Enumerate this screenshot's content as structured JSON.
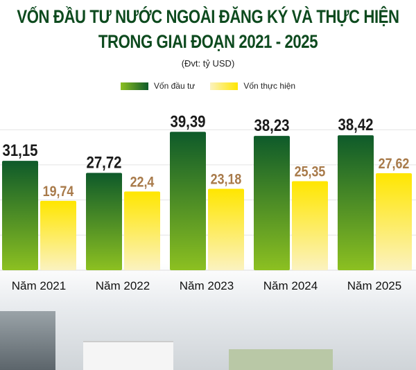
{
  "title_line1": "VỐN ĐẦU TƯ NƯỚC NGOÀI ĐĂNG KÝ VÀ THỰC HIỆN",
  "title_line2": "TRONG GIAI ĐOẠN 2021 - 2025",
  "unit": "(Đvt: tỷ USD)",
  "chart_data": {
    "type": "bar",
    "title": "VỐN ĐẦU TƯ NƯỚC NGOÀI ĐĂNG KÝ VÀ THỰC HIỆN TRONG GIAI ĐOẠN 2021 - 2025",
    "ylabel": "(Đvt: tỷ USD)",
    "categories": [
      "Năm 2021",
      "Năm 2022",
      "Năm 2023",
      "Năm 2024",
      "Năm 2025"
    ],
    "series": [
      {
        "name": "Vốn đầu tư",
        "values": [
          31.15,
          27.72,
          39.39,
          38.23,
          38.42
        ],
        "labels": [
          "31,15",
          "27,72",
          "39,39",
          "38,23",
          "38,42"
        ],
        "color": "#1f6e2c"
      },
      {
        "name": "Vốn thực hiện",
        "values": [
          19.74,
          22.4,
          23.18,
          25.35,
          27.62
        ],
        "labels": [
          "19,74",
          "22,4",
          "23,18",
          "25,35",
          "27,62"
        ],
        "color": "#ffe600"
      }
    ],
    "ylim": [
      0,
      40
    ],
    "grid": true,
    "legend": "top-center"
  }
}
